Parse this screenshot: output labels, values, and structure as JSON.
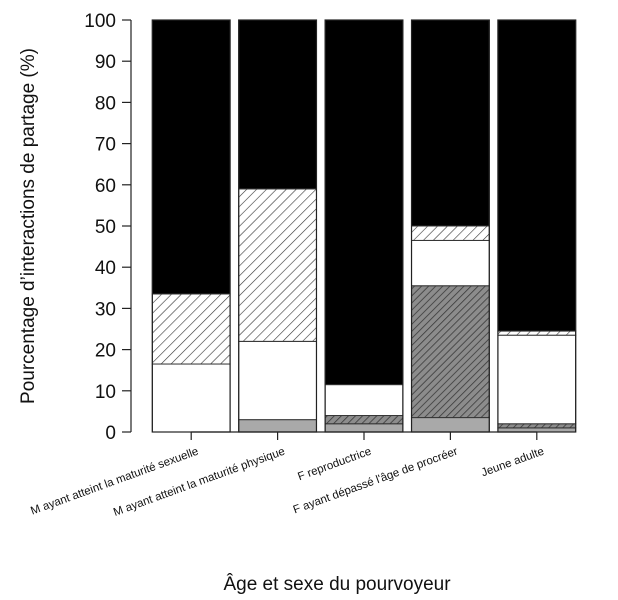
{
  "chart_data": {
    "type": "bar",
    "stacked": true,
    "percent": true,
    "ylabel": "Pourcentage d’interactions de partage (%)",
    "xlabel": "Âge et sexe du pourvoyeur",
    "ylim": [
      0,
      100
    ],
    "yticks": [
      "0",
      "10",
      "20",
      "30",
      "40",
      "50",
      "60",
      "70",
      "80",
      "90",
      "100"
    ],
    "categories": [
      "M ayant atteint la maturité sexuelle",
      "M ayant atteint la maturité physique",
      "F reproductrice",
      "F ayant dépassé l'âge de procréer",
      "Jeune adulte"
    ],
    "segment_styles": [
      {
        "fill": "#a9a9a9"
      },
      {
        "fill": "#7c7c7c",
        "pattern": "dense-hatch"
      },
      {
        "fill": "#ffffff"
      },
      {
        "fill": "#ffffff",
        "pattern": "hatch"
      },
      {
        "fill": "#000000"
      }
    ],
    "series": [
      {
        "values": [
          0,
          3,
          2,
          3.5,
          1
        ]
      },
      {
        "values": [
          0,
          0,
          2,
          32,
          1
        ]
      },
      {
        "values": [
          16.5,
          19,
          7.5,
          11,
          21.5
        ]
      },
      {
        "values": [
          17,
          37,
          0,
          3.5,
          1
        ]
      },
      {
        "values": [
          66.5,
          41,
          88.5,
          50,
          75.5
        ]
      }
    ]
  }
}
